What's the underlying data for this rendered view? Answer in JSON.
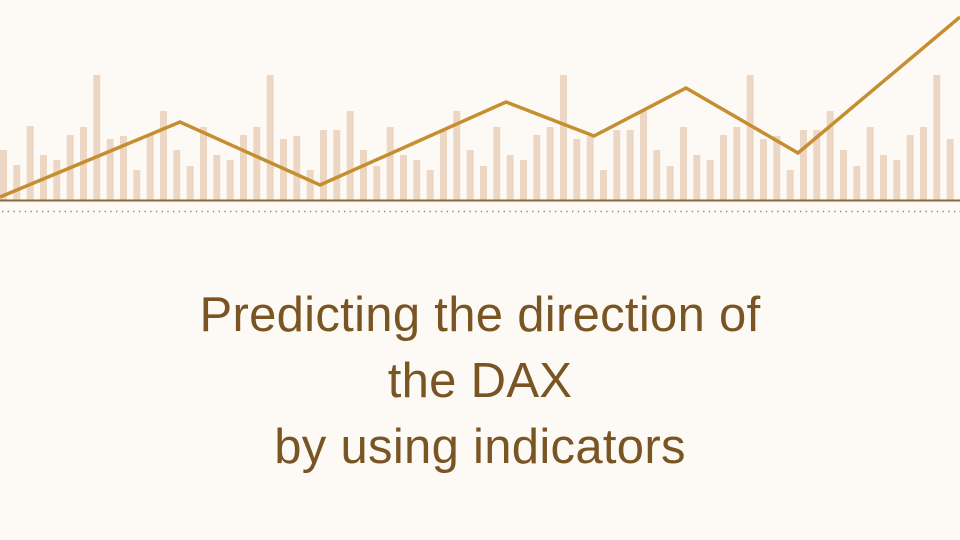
{
  "slide": {
    "title_lines": [
      "Predicting the direction of",
      "the DAX",
      "by using indicators"
    ]
  },
  "decoration": {
    "bar_color": "#ecd6c4",
    "line_color": "#c58f31",
    "baseline_color": "#8a6a3a",
    "dotted_rule_color": "#9c8a72",
    "title_color": "#7a5524",
    "background_color": "#fdfaf5"
  }
}
